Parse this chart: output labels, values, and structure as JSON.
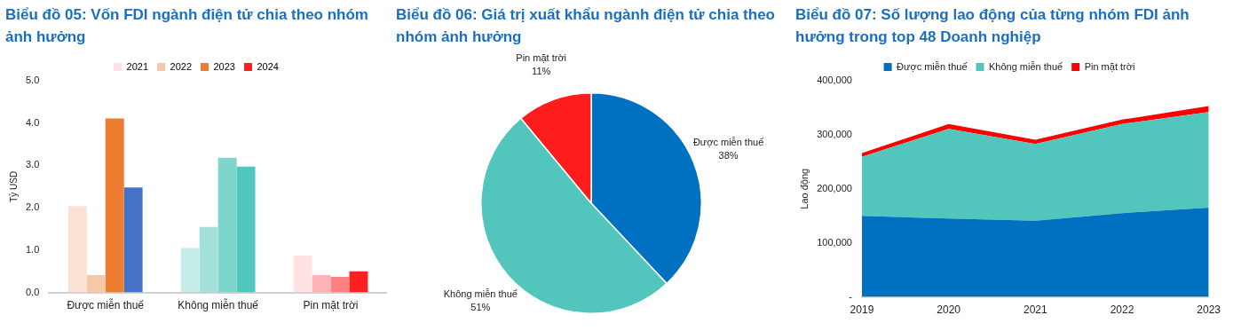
{
  "chart_data": [
    {
      "type": "bar",
      "title": "Biểu đồ 05: Vốn FDI ngành điện tử chia theo nhóm ảnh hưởng",
      "ylabel": "Tỷ USD",
      "categories": [
        "Được miễn thuế",
        "Không miễn thuế",
        "Pin mặt trời"
      ],
      "series": [
        {
          "name": "2021",
          "color": "#fde3e3",
          "colors": [
            "#fae3d5",
            "#c5ebe6",
            "#fde3e3"
          ],
          "values": [
            2.04,
            1.05,
            0.87
          ]
        },
        {
          "name": "2022",
          "color": "#f7c8a8",
          "colors": [
            "#f7c8a8",
            "#a3e0da",
            "#ffb3b3"
          ],
          "values": [
            0.41,
            1.55,
            0.41
          ]
        },
        {
          "name": "2023",
          "color": "#ed7d31",
          "colors": [
            "#ed7d31",
            "#7dd5cc",
            "#ff8080"
          ],
          "values": [
            4.11,
            3.18,
            0.37
          ]
        },
        {
          "name": "2024",
          "color": "#ff2020",
          "colors": [
            "#4472c4",
            "#52c6bc",
            "#ff2020"
          ],
          "values": [
            2.48,
            2.97,
            0.5
          ]
        }
      ],
      "ylim": [
        0,
        5
      ],
      "yticks": [
        {
          "value": 0,
          "label": "0.0"
        },
        {
          "value": 1,
          "label": "1.0"
        },
        {
          "value": 2,
          "label": "2.0"
        },
        {
          "value": 3,
          "label": "3.0"
        },
        {
          "value": 4,
          "label": "4.0"
        },
        {
          "value": 5,
          "label": "5.0"
        }
      ],
      "grid": false,
      "legend": "top"
    },
    {
      "type": "pie",
      "title": "Biểu đồ 06: Giá trị xuất khẩu ngành điện tử chia theo nhóm ảnh hưởng",
      "categories": [
        "Được miễn thuế",
        "Không miễn thuế",
        "Pin mặt trời"
      ],
      "values": [
        38,
        51,
        11
      ],
      "colors": [
        "#0070c0",
        "#52c6bc",
        "#ff1c1c"
      ],
      "value_labels": [
        "38%",
        "51%",
        "11%"
      ],
      "legend": false
    },
    {
      "type": "area",
      "title": "Biểu đồ 07: Số lượng lao động của từng nhóm FDI ảnh hưởng trong top 48 Doanh nghiệp",
      "ylabel": "Lao động",
      "categories": [
        "2019",
        "2020",
        "2021",
        "2022",
        "2023"
      ],
      "stacked": true,
      "series": [
        {
          "name": "Được miễn thuế",
          "color": "#0070c0",
          "values": [
            150000,
            145000,
            141000,
            155000,
            165000
          ]
        },
        {
          "name": "Không miễn thuế",
          "color": "#52c6bc",
          "values": [
            109000,
            166000,
            142000,
            165000,
            177000
          ]
        },
        {
          "name": "Pin mặt trời",
          "color": "#ff0000",
          "values": [
            7000,
            9000,
            8000,
            8000,
            11000
          ]
        }
      ],
      "ylim": [
        0,
        400000
      ],
      "yticks": [
        {
          "value": 0,
          "label": "-"
        },
        {
          "value": 100000,
          "label": "100,000"
        },
        {
          "value": 200000,
          "label": "200,000"
        },
        {
          "value": 300000,
          "label": "300,000"
        },
        {
          "value": 400000,
          "label": "400,000"
        }
      ],
      "grid": false,
      "legend": "top",
      "marker": "none"
    }
  ]
}
